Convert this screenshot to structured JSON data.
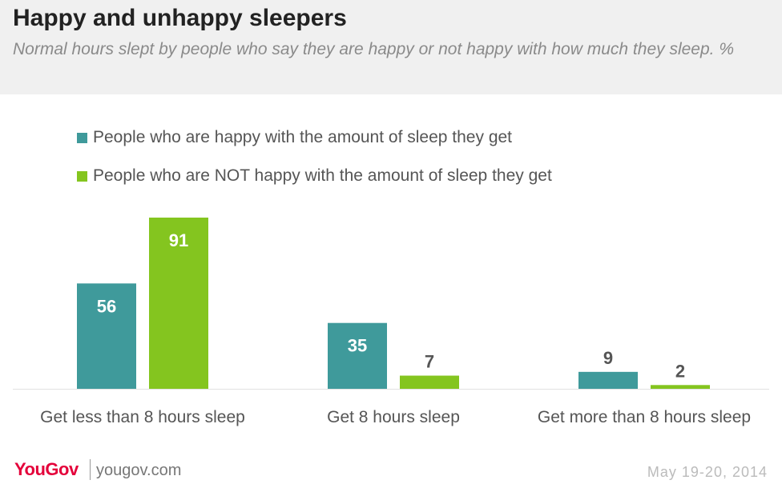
{
  "header": {
    "title": "Happy and unhappy sleepers",
    "subtitle": "Normal hours slept by people who say they are happy or not happy with how much they sleep. %"
  },
  "legend": [
    {
      "label": "People who are happy with the amount of sleep they get",
      "color": "#3f9a9b"
    },
    {
      "label": "People who are NOT happy with the amount of sleep they get",
      "color": "#84c51f"
    }
  ],
  "chart_data": {
    "type": "bar",
    "title": "Happy and unhappy sleepers",
    "subtitle": "Normal hours slept by people who say they are happy or not happy with how much they sleep. %",
    "categories": [
      "Get less than 8 hours sleep",
      "Get 8 hours sleep",
      "Get more than 8 hours sleep"
    ],
    "series": [
      {
        "name": "People who are happy with the amount of sleep they get",
        "values": [
          56,
          35,
          9
        ],
        "color": "#3f9a9b"
      },
      {
        "name": "People who are NOT happy with the amount of sleep they get",
        "values": [
          91,
          7,
          2
        ],
        "color": "#84c51f"
      }
    ],
    "xlabel": "",
    "ylabel": "",
    "ylim": [
      0,
      91
    ],
    "grid": false,
    "legend_position": "top-left",
    "data_labels": true
  },
  "footer": {
    "logo": "YouGov",
    "site": "yougov.com",
    "date": "May 19-20, 2014"
  }
}
